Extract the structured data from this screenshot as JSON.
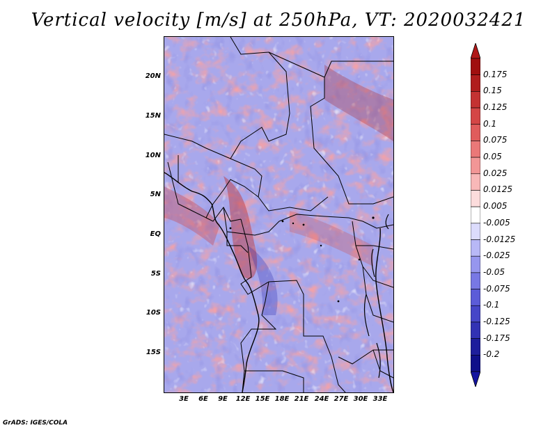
{
  "title": "Vertical velocity [m/s] at 250hPa, VT: 2020032421",
  "credit": "GrADS: IGES/COLA",
  "map": {
    "lat_labels": [
      "20N",
      "15N",
      "10N",
      "5N",
      "EQ",
      "5S",
      "10S",
      "15S"
    ],
    "lon_labels": [
      "3E",
      "6E",
      "9E",
      "12E",
      "15E",
      "18E",
      "21E",
      "24E",
      "27E",
      "30E",
      "33E"
    ]
  },
  "colorbar": {
    "labels": [
      "0.175",
      "0.15",
      "0.125",
      "0.1",
      "0.075",
      "0.05",
      "0.025",
      "0.0125",
      "0.005",
      "-0.005",
      "-0.0125",
      "-0.025",
      "-0.05",
      "-0.075",
      "-0.1",
      "-0.125",
      "-0.175",
      "-0.2"
    ],
    "colors": [
      "#a01010",
      "#b01e1e",
      "#c43232",
      "#d44646",
      "#e05c5c",
      "#ea7878",
      "#f29696",
      "#f8b8b8",
      "#fcdcdc",
      "#ffffff",
      "#dcdcfc",
      "#b8b8f6",
      "#9696ee",
      "#7878e4",
      "#5c5cd8",
      "#4646c8",
      "#3232b4",
      "#1e1e9c",
      "#10108a"
    ],
    "top_color": "#b01818",
    "bottom_color": "#1414a0"
  }
}
